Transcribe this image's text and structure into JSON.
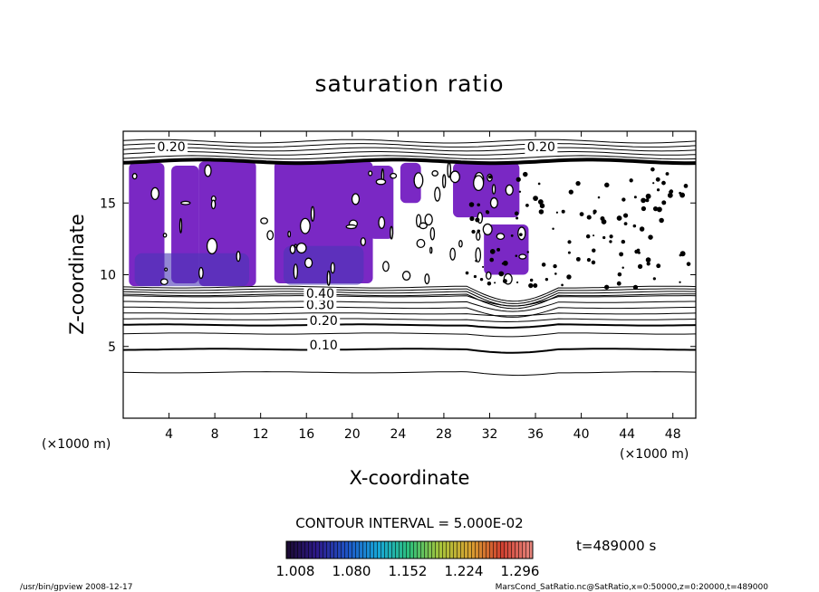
{
  "chart_data": {
    "type": "heatmap",
    "title": "saturation ratio",
    "xlabel": "X-coordinate",
    "ylabel": "Z-coordinate",
    "x_unit": "(×1000 m)",
    "z_unit": "(×1000 m)",
    "xlim": [
      0,
      50
    ],
    "zlim": [
      0,
      20
    ],
    "x_ticks": [
      4,
      8,
      12,
      16,
      20,
      24,
      28,
      32,
      36,
      40,
      44,
      48
    ],
    "z_ticks": [
      5,
      10,
      15
    ],
    "contour_interval_text": "CONTOUR INTERVAL = 5.000E-02",
    "contour_labels": [
      {
        "text": "0.10",
        "x": 17.5,
        "z": 4.8
      },
      {
        "text": "0.20",
        "x": 17.5,
        "z": 6.5
      },
      {
        "text": "0.30",
        "x": 17.2,
        "z": 7.6
      },
      {
        "text": "0.40",
        "x": 17.2,
        "z": 8.4
      },
      {
        "text": "0.20",
        "x": 4.2,
        "z": 18.6
      },
      {
        "text": "0.20",
        "x": 36.5,
        "z": 18.6
      }
    ],
    "contour_levels": [
      {
        "value": 0.05,
        "base": 3.2
      },
      {
        "value": 0.1,
        "base": 4.8
      },
      {
        "value": 0.15,
        "base": 5.9
      },
      {
        "value": 0.2,
        "base": 6.5
      },
      {
        "value": 0.25,
        "base": 6.9
      },
      {
        "value": 0.3,
        "base": 7.3
      },
      {
        "value": 0.35,
        "base": 7.7
      },
      {
        "value": 0.4,
        "base": 8.1
      },
      {
        "value": 0.45,
        "base": 8.5
      }
    ],
    "colorbar": {
      "min": 1.008,
      "max": 1.296,
      "labels": [
        "1.008",
        "1.080",
        "1.152",
        "1.224",
        "1.296"
      ],
      "colors": [
        "#1a0a2e",
        "#2d1a8a",
        "#1e56c8",
        "#18a8d8",
        "#2ec07a",
        "#a8c43a",
        "#d8a030",
        "#d04030",
        "#e88880"
      ]
    },
    "time_label": "t=489000 s",
    "supersaturated_fill": "#7a28c4"
  },
  "footer": {
    "left": "/usr/bin/gpview   2008-12-17",
    "right": "MarsCond_SatRatio.nc@SatRatio,x=0:50000,z=0:20000,t=489000"
  }
}
